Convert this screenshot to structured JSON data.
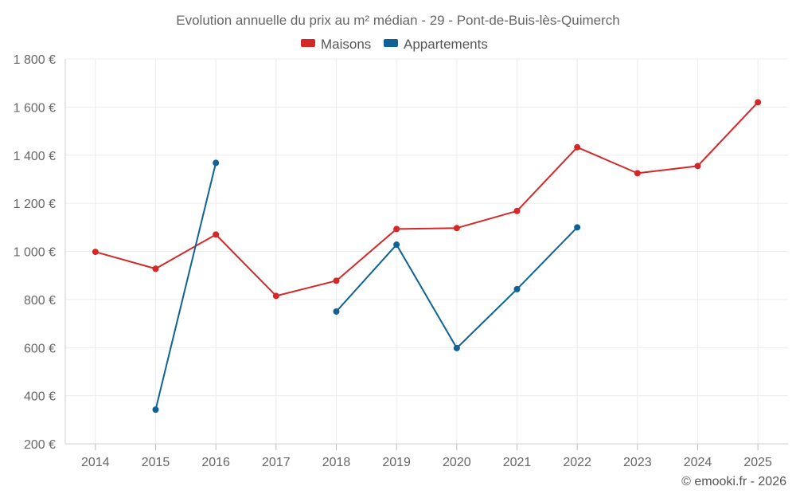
{
  "chart_data": {
    "type": "line",
    "title": "Evolution annuelle du prix au m² médian - 29 - Pont-de-Buis-lès-Quimerch",
    "categories": [
      "2014",
      "2015",
      "2016",
      "2017",
      "2018",
      "2019",
      "2020",
      "2021",
      "2022",
      "2023",
      "2024",
      "2025"
    ],
    "y_ticks": [
      "200 €",
      "400 €",
      "600 €",
      "800 €",
      "1 000 €",
      "1 200 €",
      "1 400 €",
      "1 600 €",
      "1 800 €"
    ],
    "ylim": [
      200,
      1800
    ],
    "grid": true,
    "legend_position": "top-center",
    "series": [
      {
        "name": "Maisons",
        "color": "#d62728",
        "values": [
          998,
          928,
          1070,
          815,
          878,
          1093,
          1097,
          1168,
          1433,
          1325,
          1355,
          1620
        ]
      },
      {
        "name": "Appartements",
        "color": "#0f6296",
        "values": [
          null,
          342,
          1368,
          null,
          750,
          1028,
          598,
          843,
          1100,
          null,
          null,
          null
        ]
      }
    ],
    "credit": "© emooki.fr - 2026"
  }
}
